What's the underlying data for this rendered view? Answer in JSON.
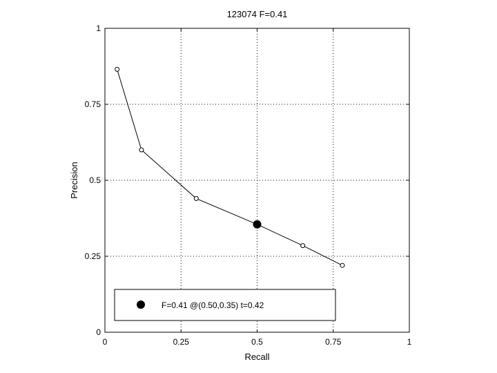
{
  "chart_data": {
    "type": "line",
    "title": "123074 F=0.41",
    "xlabel": "Recall",
    "ylabel": "Precision",
    "xlim": [
      0,
      1
    ],
    "ylim": [
      0,
      1
    ],
    "xticks": [
      0,
      0.25,
      0.5,
      0.75,
      1
    ],
    "xtick_labels": [
      "0",
      "0.25",
      "0.5",
      "0.75",
      "1"
    ],
    "yticks": [
      0,
      0.25,
      0.5,
      0.75,
      1
    ],
    "ytick_labels": [
      "0",
      "0.25",
      "0.5",
      "0.75",
      "1"
    ],
    "grid": "dotted",
    "legend_position": "bottom",
    "series": [
      {
        "x": [
          0.04,
          0.12,
          0.3,
          0.5,
          0.65,
          0.78
        ],
        "y": [
          0.865,
          0.6,
          0.44,
          0.355,
          0.285,
          0.22
        ],
        "color": "#000000",
        "marker": "open-circle"
      }
    ],
    "highlight": {
      "x": 0.5,
      "y": 0.355,
      "marker": "filled-circle",
      "label": "F=0.41 @(0.50,0.35) t=0.42"
    }
  }
}
